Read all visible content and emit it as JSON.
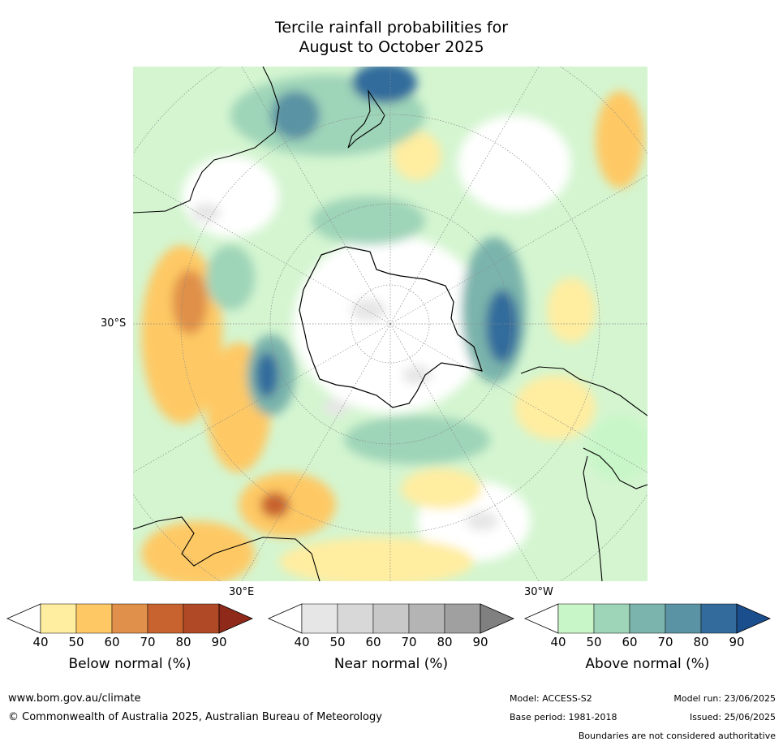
{
  "title": {
    "line1": "Tercile rainfall probabilities for",
    "line2": "August to October 2025"
  },
  "map": {
    "projection": "south-polar-stereographic",
    "lat_labels": [
      "30°S"
    ],
    "lon_labels": [
      "30°E",
      "30°W"
    ]
  },
  "colorbars": [
    {
      "name": "Below normal (%)",
      "ticks": [
        "40",
        "50",
        "60",
        "70",
        "80",
        "90"
      ],
      "colors": [
        "#ffffff",
        "#ffeda0",
        "#fec965",
        "#e0904a",
        "#c8622f",
        "#b04a26",
        "#8f2a1a"
      ]
    },
    {
      "name": "Near normal (%)",
      "ticks": [
        "40",
        "50",
        "60",
        "70",
        "80",
        "90"
      ],
      "colors": [
        "#ffffff",
        "#e6e6e6",
        "#d8d8d8",
        "#c8c8c8",
        "#b4b4b4",
        "#a0a0a0",
        "#808080"
      ]
    },
    {
      "name": "Above normal (%)",
      "ticks": [
        "40",
        "50",
        "60",
        "70",
        "80",
        "90"
      ],
      "colors": [
        "#ffffff",
        "#c8f6c8",
        "#9ed4b8",
        "#7ab4ac",
        "#5a93a4",
        "#336c9c",
        "#1a4e8c"
      ]
    }
  ],
  "footer": {
    "url": "www.bom.gov.au/climate",
    "copyright": "© Commonwealth of Australia 2025, Australian Bureau of Meteorology",
    "model": "Model: ACCESS-S2",
    "base_period": "Base period: 1981-2018",
    "model_run": "Model run: 23/06/2025",
    "issued": "Issued: 25/06/2025",
    "disclaimer": "Boundaries are not considered authoritative"
  }
}
